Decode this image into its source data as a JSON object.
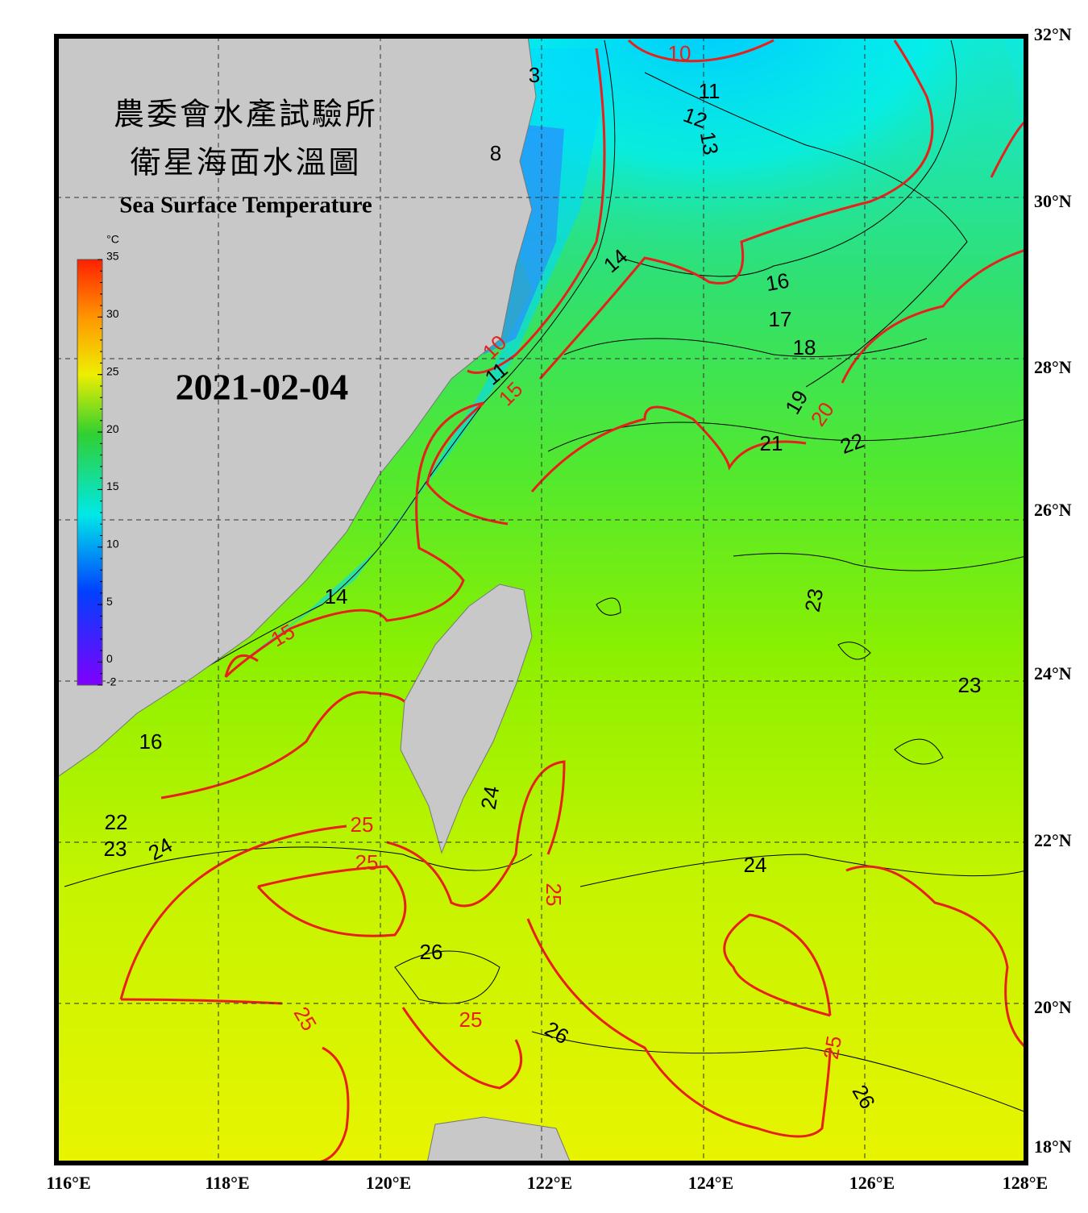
{
  "header": {
    "title_zh_1": "農委會水產試驗所",
    "title_zh_2": "衛星海面水溫圖",
    "title_en": "Sea Surface Temperature",
    "date": "2021-02-04"
  },
  "colorbar": {
    "unit": "°C",
    "lim": [
      -2,
      35
    ],
    "ticks": [
      35,
      30,
      25,
      20,
      15,
      10,
      5,
      0,
      -2
    ]
  },
  "axes": {
    "lon_labels": [
      "116°E",
      "118°E",
      "120°E",
      "122°E",
      "124°E",
      "126°E",
      "128°E"
    ],
    "lat_labels": [
      "32°N",
      "30°N",
      "28°N",
      "26°N",
      "24°N",
      "22°N",
      "20°N",
      "18°N"
    ]
  },
  "contour_labels": [
    "10",
    "3",
    "11",
    "12",
    "13",
    "8",
    "14",
    "16",
    "17",
    "18",
    "10",
    "11",
    "15",
    "19",
    "20",
    "21",
    "22",
    "23",
    "14",
    "15",
    "16",
    "23",
    "24",
    "25",
    "25",
    "22",
    "23",
    "24",
    "25",
    "24",
    "26",
    "25",
    "25",
    "26",
    "25",
    "26"
  ]
}
